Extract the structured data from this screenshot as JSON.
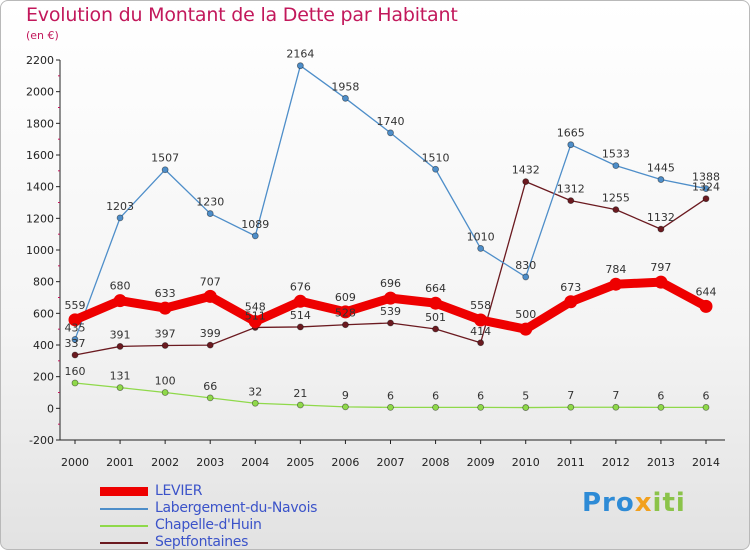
{
  "title": "Evolution du Montant de la Dette par Habitant",
  "subtitle": "(en €)",
  "logo": {
    "parts": [
      "Pro",
      "x",
      "iti"
    ]
  },
  "chart_data": {
    "type": "line",
    "x": [
      "2000",
      "2001",
      "2002",
      "2003",
      "2004",
      "2005",
      "2006",
      "2007",
      "2008",
      "2009",
      "2010",
      "2011",
      "2012",
      "2013",
      "2014"
    ],
    "ylim": [
      -200,
      2200
    ],
    "yticks": [
      -200,
      0,
      200,
      400,
      600,
      800,
      1000,
      1200,
      1400,
      1600,
      1800,
      2000,
      2200
    ],
    "grid": false,
    "legend_position": "bottom-left",
    "series": [
      {
        "name": "LEVIER",
        "color": "#ee0000",
        "width": 9,
        "radius": 6.5,
        "values": [
          559,
          680,
          633,
          707,
          548,
          676,
          609,
          696,
          664,
          558,
          500,
          673,
          784,
          797,
          644
        ],
        "labels": [
          559,
          680,
          633,
          707,
          548,
          676,
          609,
          696,
          664,
          558,
          500,
          673,
          784,
          797,
          644
        ]
      },
      {
        "name": "Labergement-du-Navois",
        "color": "#4e8ec9",
        "width": 1.3,
        "radius": 3,
        "values": [
          435,
          1203,
          1507,
          1230,
          1089,
          2164,
          1958,
          1740,
          1510,
          1010,
          830,
          1665,
          1533,
          1445,
          1388
        ],
        "labels": [
          435,
          1203,
          1507,
          1230,
          1089,
          2164,
          1958,
          1740,
          1510,
          1010,
          830,
          1665,
          1533,
          1445,
          1388
        ]
      },
      {
        "name": "Chapelle-d'Huin",
        "color": "#8fd94a",
        "width": 1.3,
        "radius": 3,
        "values": [
          160,
          131,
          100,
          66,
          32,
          21,
          9,
          6,
          6,
          6,
          5,
          7,
          7,
          6,
          6
        ],
        "labels": [
          160,
          131,
          100,
          66,
          32,
          21,
          9,
          6,
          6,
          6,
          5,
          7,
          7,
          6,
          6
        ]
      },
      {
        "name": "Septfontaines",
        "color": "#6b1a20",
        "width": 1.3,
        "radius": 3,
        "values": [
          337,
          391,
          397,
          399,
          511,
          514,
          528,
          539,
          501,
          414,
          1432,
          1312,
          1255,
          1132,
          1324
        ],
        "labels": [
          337,
          391,
          397,
          399,
          511,
          514,
          528,
          539,
          501,
          414,
          1432,
          1312,
          1255,
          1132,
          1324
        ]
      }
    ]
  }
}
